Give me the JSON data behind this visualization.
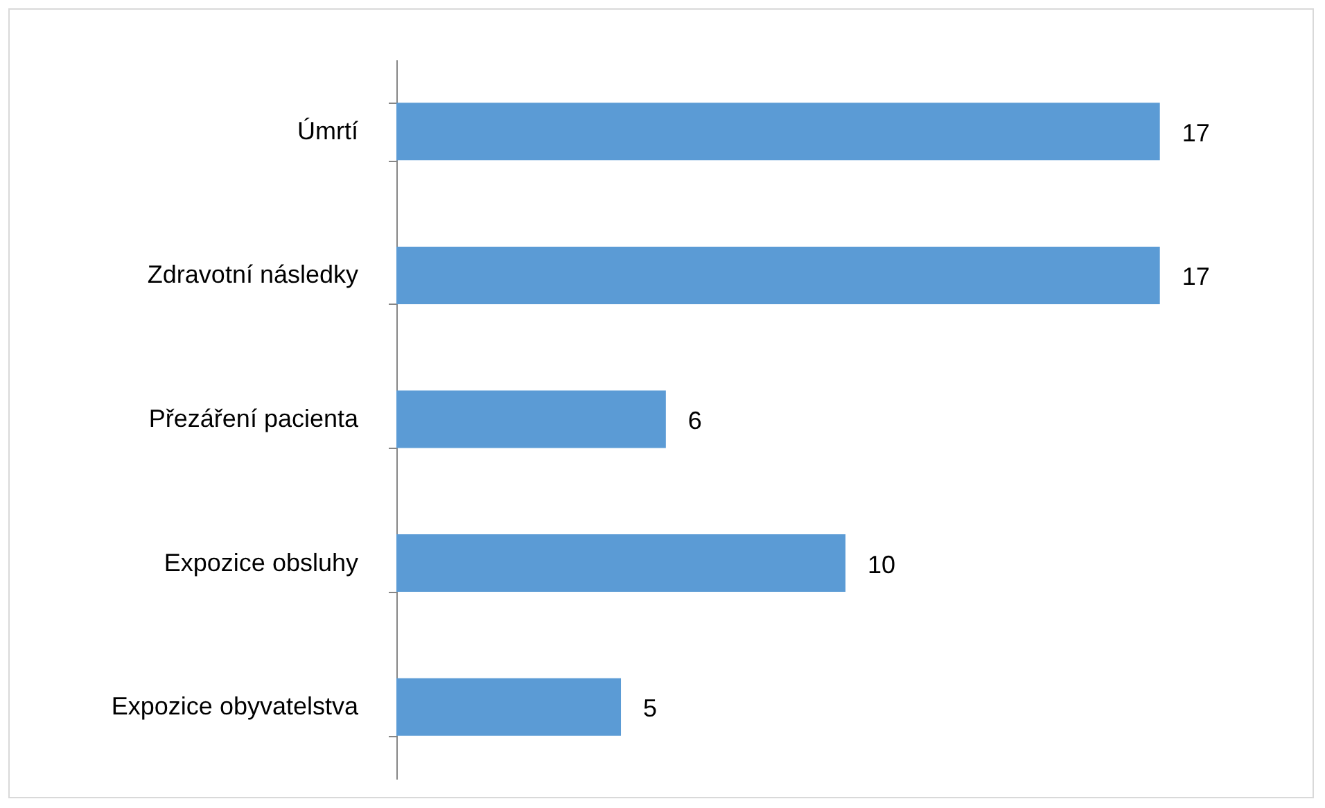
{
  "chart_data": {
    "type": "bar",
    "orientation": "horizontal",
    "categories": [
      "Úmrtí",
      "Zdravotní následky",
      "Přezáření pacienta",
      "Expozice obsluhy",
      "Expozice obyvatelstva"
    ],
    "values": [
      17,
      17,
      6,
      10,
      5
    ],
    "color": "#5b9bd5",
    "data_labels": true,
    "tick_labels": "y"
  }
}
